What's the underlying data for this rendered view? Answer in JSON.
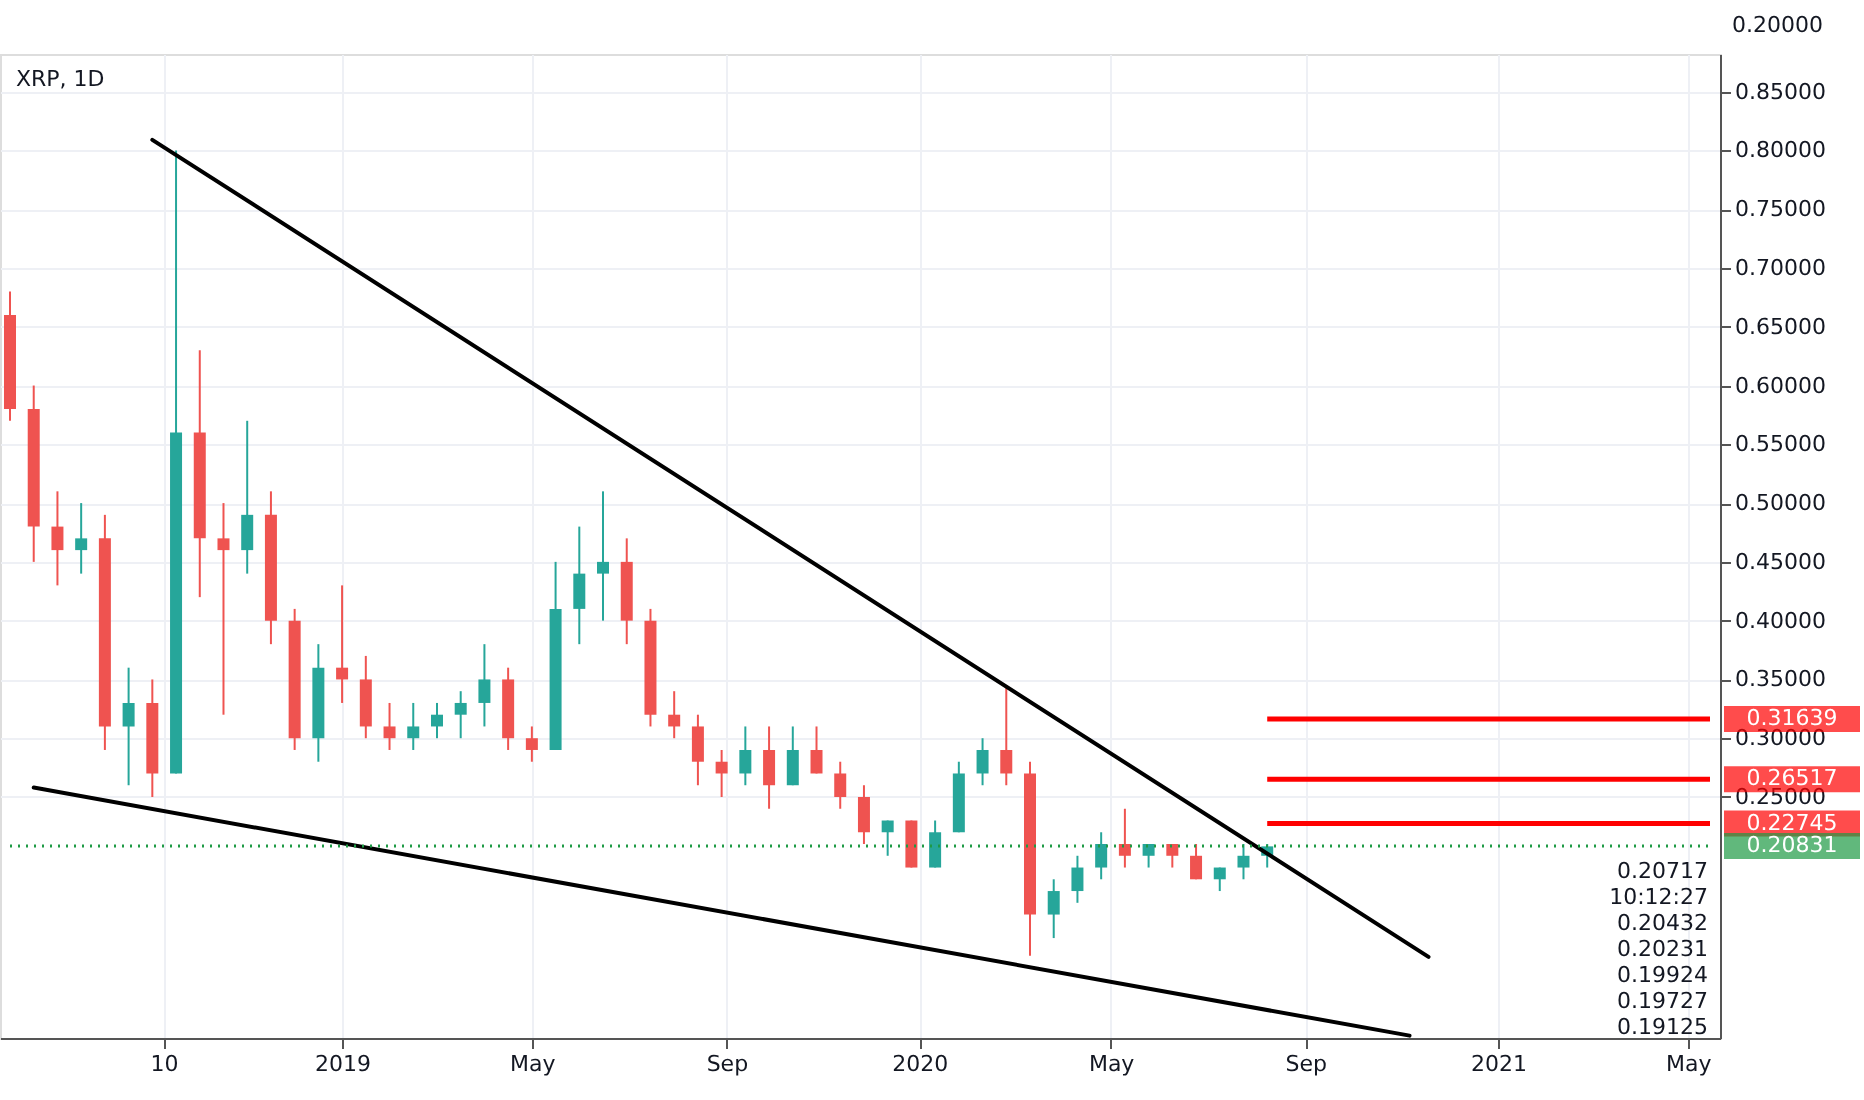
{
  "chart_data": {
    "type": "candlestick",
    "title": "XRP, 1D",
    "x": [
      "2018-06-05",
      "2018-06-20",
      "2018-07-05",
      "2018-07-20",
      "2018-08-04",
      "2018-08-19",
      "2018-09-03",
      "2018-09-18",
      "2018-10-03",
      "2018-10-18",
      "2018-11-02",
      "2018-11-17",
      "2018-12-02",
      "2018-12-17",
      "2019-01-01",
      "2019-01-16",
      "2019-01-31",
      "2019-02-15",
      "2019-03-02",
      "2019-03-17",
      "2019-04-01",
      "2019-04-16",
      "2019-05-01",
      "2019-05-16",
      "2019-05-31",
      "2019-06-15",
      "2019-06-30",
      "2019-07-15",
      "2019-07-30",
      "2019-08-14",
      "2019-08-29",
      "2019-09-13",
      "2019-09-28",
      "2019-10-13",
      "2019-10-28",
      "2019-11-12",
      "2019-11-27",
      "2019-12-12",
      "2019-12-27",
      "2020-01-11",
      "2020-01-26",
      "2020-02-10",
      "2020-02-25",
      "2020-03-11",
      "2020-03-26",
      "2020-04-10",
      "2020-04-25",
      "2020-05-10",
      "2020-05-25",
      "2020-06-09",
      "2020-06-24",
      "2020-07-09",
      "2020-07-24",
      "2020-08-08"
    ],
    "ohlc": [
      [
        0.66,
        0.68,
        0.57,
        0.58
      ],
      [
        0.58,
        0.6,
        0.45,
        0.48
      ],
      [
        0.48,
        0.51,
        0.43,
        0.46
      ],
      [
        0.46,
        0.5,
        0.44,
        0.47
      ],
      [
        0.47,
        0.49,
        0.29,
        0.31
      ],
      [
        0.31,
        0.36,
        0.26,
        0.33
      ],
      [
        0.33,
        0.35,
        0.25,
        0.27
      ],
      [
        0.27,
        0.8,
        0.27,
        0.56
      ],
      [
        0.56,
        0.63,
        0.42,
        0.47
      ],
      [
        0.47,
        0.5,
        0.32,
        0.46
      ],
      [
        0.46,
        0.57,
        0.44,
        0.49
      ],
      [
        0.49,
        0.51,
        0.38,
        0.4
      ],
      [
        0.4,
        0.41,
        0.29,
        0.3
      ],
      [
        0.3,
        0.38,
        0.28,
        0.36
      ],
      [
        0.36,
        0.43,
        0.33,
        0.35
      ],
      [
        0.35,
        0.37,
        0.3,
        0.31
      ],
      [
        0.31,
        0.33,
        0.29,
        0.3
      ],
      [
        0.3,
        0.33,
        0.29,
        0.31
      ],
      [
        0.31,
        0.33,
        0.3,
        0.32
      ],
      [
        0.32,
        0.34,
        0.3,
        0.33
      ],
      [
        0.33,
        0.38,
        0.31,
        0.35
      ],
      [
        0.35,
        0.36,
        0.29,
        0.3
      ],
      [
        0.3,
        0.31,
        0.28,
        0.29
      ],
      [
        0.29,
        0.45,
        0.29,
        0.41
      ],
      [
        0.41,
        0.48,
        0.38,
        0.44
      ],
      [
        0.44,
        0.51,
        0.4,
        0.45
      ],
      [
        0.45,
        0.47,
        0.38,
        0.4
      ],
      [
        0.4,
        0.41,
        0.31,
        0.32
      ],
      [
        0.32,
        0.34,
        0.3,
        0.31
      ],
      [
        0.31,
        0.32,
        0.26,
        0.28
      ],
      [
        0.28,
        0.29,
        0.25,
        0.27
      ],
      [
        0.27,
        0.31,
        0.26,
        0.29
      ],
      [
        0.29,
        0.31,
        0.24,
        0.26
      ],
      [
        0.26,
        0.31,
        0.26,
        0.29
      ],
      [
        0.29,
        0.31,
        0.27,
        0.27
      ],
      [
        0.27,
        0.28,
        0.24,
        0.25
      ],
      [
        0.25,
        0.26,
        0.21,
        0.22
      ],
      [
        0.22,
        0.23,
        0.2,
        0.23
      ],
      [
        0.23,
        0.23,
        0.19,
        0.19
      ],
      [
        0.19,
        0.23,
        0.19,
        0.22
      ],
      [
        0.22,
        0.28,
        0.22,
        0.27
      ],
      [
        0.27,
        0.3,
        0.26,
        0.29
      ],
      [
        0.29,
        0.345,
        0.26,
        0.27
      ],
      [
        0.27,
        0.28,
        0.115,
        0.15
      ],
      [
        0.15,
        0.18,
        0.13,
        0.17
      ],
      [
        0.17,
        0.2,
        0.16,
        0.19
      ],
      [
        0.19,
        0.22,
        0.18,
        0.21
      ],
      [
        0.21,
        0.24,
        0.19,
        0.2
      ],
      [
        0.2,
        0.21,
        0.19,
        0.21
      ],
      [
        0.21,
        0.21,
        0.19,
        0.2
      ],
      [
        0.2,
        0.21,
        0.18,
        0.18
      ],
      [
        0.18,
        0.19,
        0.17,
        0.19
      ],
      [
        0.19,
        0.21,
        0.18,
        0.2
      ],
      [
        0.2,
        0.21,
        0.19,
        0.208
      ]
    ],
    "colors": [
      "#ef5350",
      "#ef5350",
      "#ef5350",
      "#26a69a",
      "#ef5350",
      "#26a69a",
      "#ef5350",
      "#26a69a",
      "#ef5350",
      "#ef5350",
      "#26a69a",
      "#ef5350",
      "#ef5350",
      "#26a69a",
      "#ef5350",
      "#ef5350",
      "#ef5350",
      "#26a69a",
      "#26a69a",
      "#26a69a",
      "#26a69a",
      "#ef5350",
      "#ef5350",
      "#26a69a",
      "#26a69a",
      "#26a69a",
      "#ef5350",
      "#ef5350",
      "#ef5350",
      "#ef5350",
      "#ef5350",
      "#26a69a",
      "#ef5350",
      "#26a69a",
      "#ef5350",
      "#ef5350",
      "#ef5350",
      "#26a69a",
      "#ef5350",
      "#26a69a",
      "#26a69a",
      "#26a69a",
      "#ef5350",
      "#ef5350",
      "#26a69a",
      "#26a69a",
      "#26a69a",
      "#ef5350",
      "#26a69a",
      "#ef5350",
      "#ef5350",
      "#26a69a",
      "#26a69a",
      "#26a69a"
    ],
    "series": [
      {
        "type": "line",
        "color": "#000000",
        "x": [
          "2018-09-03",
          "2020-11-18"
        ],
        "values": [
          0.809,
          0.114
        ]
      },
      {
        "type": "line",
        "color": "#000000",
        "x": [
          "2018-06-20",
          "2020-11-06"
        ],
        "values": [
          0.258,
          0.047
        ]
      }
    ],
    "xlim": [
      "2018-06-05",
      "2021-05-15"
    ],
    "xticks": [
      {
        "value": "2018-09-10",
        "label": "10"
      },
      {
        "value": "2019-01-01",
        "label": "2019"
      },
      {
        "value": "2019-05-01",
        "label": "May"
      },
      {
        "value": "2019-09-01",
        "label": "Sep"
      },
      {
        "value": "2020-01-01",
        "label": "2020"
      },
      {
        "value": "2020-05-01",
        "label": "May"
      },
      {
        "value": "2020-09-01",
        "label": "Sep"
      },
      {
        "value": "2021-01-01",
        "label": "2021"
      },
      {
        "value": "2021-05-01",
        "label": "May"
      }
    ],
    "ylim": [
      0.045,
      0.882
    ],
    "yticks": [
      {
        "value": 0.25,
        "label": "0.25000"
      },
      {
        "value": 0.3,
        "label": "0.30000"
      },
      {
        "value": 0.35,
        "label": "0.35000"
      },
      {
        "value": 0.4,
        "label": "0.40000"
      },
      {
        "value": 0.45,
        "label": "0.45000"
      },
      {
        "value": 0.5,
        "label": "0.50000"
      },
      {
        "value": 0.55,
        "label": "0.55000"
      },
      {
        "value": 0.6,
        "label": "0.60000"
      },
      {
        "value": 0.65,
        "label": "0.65000"
      },
      {
        "value": 0.7,
        "label": "0.70000"
      },
      {
        "value": 0.75,
        "label": "0.75000"
      },
      {
        "value": 0.8,
        "label": "0.80000"
      },
      {
        "value": 0.85,
        "label": "0.85000"
      }
    ],
    "grid": true,
    "ref_lines": [
      {
        "axis": "y",
        "value": 0.31639,
        "label": "0.31639",
        "color": "#ff0000"
      },
      {
        "axis": "y",
        "value": 0.26517,
        "label": "0.26517",
        "color": "#ff0000"
      },
      {
        "axis": "y",
        "value": 0.22745,
        "label": "0.22745",
        "color": "#ff0000"
      },
      {
        "axis": "y",
        "value": 0.20831,
        "label": "0.20831",
        "color": "#1e9a45",
        "line_style": "dotted"
      }
    ],
    "annotations": [
      "0.20000",
      "0.20717",
      "10:12:27",
      "0.20432",
      "0.20231",
      "0.19924",
      "0.19727",
      "0.19125"
    ]
  }
}
